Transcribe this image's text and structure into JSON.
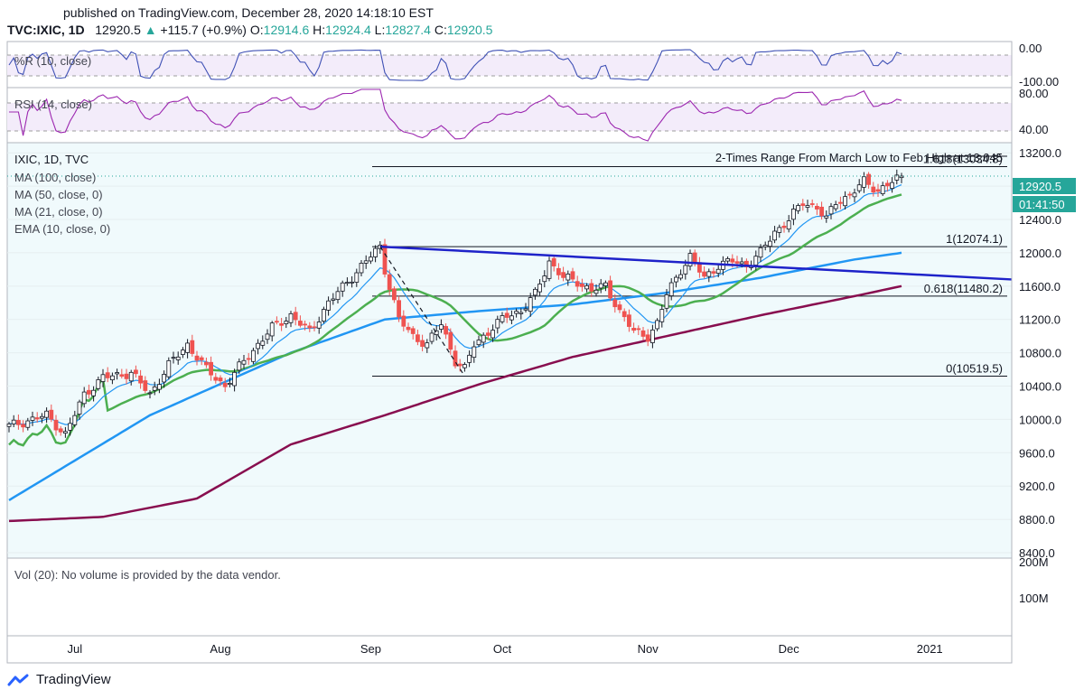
{
  "header": {
    "published": "published on TradingView.com, December 28, 2020 14:18:10 EST",
    "symbol": "TVC:IXIC, 1D",
    "last": "12920.5",
    "change": "+115.7 (+0.9%)",
    "o_label": "O:",
    "o": "12914.6",
    "h_label": "H:",
    "h": "12924.4",
    "l_label": "L:",
    "l": "12827.4",
    "c_label": "C:",
    "c": "12920.5"
  },
  "panes": {
    "wr": {
      "legend": "%R (10, close)",
      "ticks": [
        "0.00",
        "-100.00"
      ]
    },
    "rsi": {
      "legend": "RSI (14, close)",
      "ticks": [
        "80.00",
        "40.00"
      ]
    },
    "main": {
      "legend": [
        "IXIC, 1D, TVC",
        "MA (100, close)",
        "MA (50, close, 0)",
        "MA (21, close, 0)",
        "EMA (10, close, 0)"
      ],
      "annotation": "2-Times Range From March Low to Feb High at 13,045",
      "price_tag": "12920.5",
      "countdown": "01:41:50"
    },
    "volume": {
      "legend": "Vol (20): No volume is provided by the data vendor.",
      "ticks": [
        "200M",
        "100M"
      ]
    }
  },
  "chart_data": {
    "type": "candlestick",
    "title": "IXIC, 1D, TVC",
    "ylim": [
      8400,
      13300
    ],
    "y_ticks": [
      8400,
      8800,
      9200,
      9600,
      10000,
      10400,
      10800,
      11200,
      11600,
      12000,
      12400,
      12800,
      13200
    ],
    "y_tick_labels": [
      "8400.0",
      "8800.0",
      "9200.0",
      "9600.0",
      "10000.0",
      "10400.0",
      "10800.0",
      "11200.0",
      "11600.0",
      "12000.0",
      "12400.0",
      "12800.0",
      "13200.0"
    ],
    "x_month_labels": [
      "Jul",
      "Aug",
      "Sep",
      "Oct",
      "Nov",
      "Dec",
      "2021"
    ],
    "fib_levels": [
      {
        "label": "1.618(13034.8)",
        "value": 13034.8
      },
      {
        "label": "1(12074.1)",
        "value": 12074.1
      },
      {
        "label": "0.618(11480.2)",
        "value": 11480.2
      },
      {
        "label": "0(10519.5)",
        "value": 10519.5
      }
    ],
    "close_anchors": [
      [
        0,
        9920
      ],
      [
        8,
        10050
      ],
      [
        12,
        9820
      ],
      [
        16,
        10300
      ],
      [
        20,
        10500
      ],
      [
        26,
        10560
      ],
      [
        30,
        10300
      ],
      [
        34,
        10650
      ],
      [
        38,
        10900
      ],
      [
        42,
        10600
      ],
      [
        46,
        10400
      ],
      [
        50,
        10700
      ],
      [
        56,
        11100
      ],
      [
        60,
        11250
      ],
      [
        64,
        11050
      ],
      [
        68,
        11400
      ],
      [
        72,
        11650
      ],
      [
        76,
        11900
      ],
      [
        79,
        12074
      ],
      [
        80,
        11800
      ],
      [
        83,
        11200
      ],
      [
        86,
        11000
      ],
      [
        89,
        10900
      ],
      [
        92,
        11150
      ],
      [
        95,
        10700
      ],
      [
        97,
        10600
      ],
      [
        99,
        10900
      ],
      [
        102,
        11050
      ],
      [
        106,
        11250
      ],
      [
        109,
        11300
      ],
      [
        112,
        11500
      ],
      [
        115,
        11900
      ],
      [
        118,
        11700
      ],
      [
        121,
        11650
      ],
      [
        124,
        11550
      ],
      [
        127,
        11600
      ],
      [
        130,
        11300
      ],
      [
        133,
        11050
      ],
      [
        136,
        11000
      ],
      [
        138,
        11150
      ],
      [
        140,
        11500
      ],
      [
        143,
        11800
      ],
      [
        145,
        11950
      ],
      [
        148,
        11700
      ],
      [
        151,
        11850
      ],
      [
        154,
        11900
      ],
      [
        157,
        11850
      ],
      [
        160,
        12000
      ],
      [
        163,
        12250
      ],
      [
        166,
        12400
      ],
      [
        169,
        12600
      ],
      [
        172,
        12550
      ],
      [
        174,
        12400
      ],
      [
        176,
        12600
      ],
      [
        179,
        12700
      ],
      [
        182,
        12850
      ],
      [
        185,
        12750
      ],
      [
        187,
        12820
      ],
      [
        189,
        12880
      ],
      [
        190,
        12920.5
      ]
    ],
    "series": [
      {
        "name": "EMA (10, close, 0)",
        "color": "#2196f3"
      },
      {
        "name": "MA (21, close, 0)",
        "color": "#4caf50"
      },
      {
        "name": "MA (50, close, 0)",
        "color": "#2196f3"
      },
      {
        "name": "MA (100, close)",
        "color": "#880e4f"
      }
    ],
    "ma50_anchors": [
      [
        0,
        9030
      ],
      [
        30,
        10050
      ],
      [
        60,
        10800
      ],
      [
        80,
        11200
      ],
      [
        100,
        11300
      ],
      [
        120,
        11380
      ],
      [
        140,
        11520
      ],
      [
        160,
        11700
      ],
      [
        180,
        11920
      ],
      [
        190,
        12000
      ]
    ],
    "ma100_anchors": [
      [
        0,
        8780
      ],
      [
        20,
        8830
      ],
      [
        40,
        9050
      ],
      [
        60,
        9700
      ],
      [
        80,
        10050
      ],
      [
        100,
        10420
      ],
      [
        120,
        10750
      ],
      [
        140,
        11000
      ],
      [
        160,
        11250
      ],
      [
        180,
        11480
      ],
      [
        190,
        11600
      ]
    ],
    "trendline": [
      [
        79,
        12074
      ],
      [
        232,
        11680
      ]
    ],
    "zigzag": [
      [
        79,
        12074
      ],
      [
        97,
        10519.5
      ]
    ]
  }
}
